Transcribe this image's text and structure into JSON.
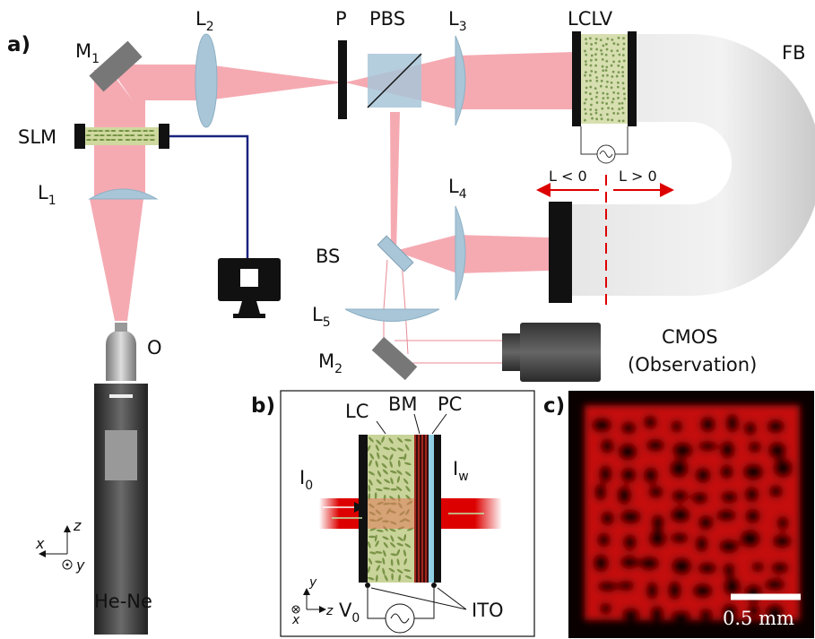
{
  "panel_a": {
    "label": "a)",
    "m1": {
      "main": "M",
      "sub": "1"
    },
    "l2": {
      "main": "L",
      "sub": "2"
    },
    "p": "P",
    "pbs": "PBS",
    "l3": {
      "main": "L",
      "sub": "3"
    },
    "lclv": "LCLV",
    "fb": "FB",
    "slm": "SLM",
    "l1": {
      "main": "L",
      "sub": "1"
    },
    "l4": {
      "main": "L",
      "sub": "4"
    },
    "l_neg": "L < 0",
    "l_pos": "L > 0",
    "bs": "BS",
    "l5": {
      "main": "L",
      "sub": "5"
    },
    "m2": {
      "main": "M",
      "sub": "2"
    },
    "cmos": "CMOS",
    "observation": "(Observation)",
    "o": "O",
    "laser": "He-Ne",
    "axis_x": "x",
    "axis_z": "z",
    "axis_y": "y"
  },
  "panel_b": {
    "label": "b)",
    "lc": "LC",
    "bm": "BM",
    "pc": "PC",
    "i0": {
      "main": "I",
      "sub": "0"
    },
    "iw": {
      "main": "I",
      "sub": "w"
    },
    "v0": {
      "main": "V",
      "sub": "0"
    },
    "ito": "ITO",
    "axis_y": "y",
    "axis_x": "x",
    "axis_z": "z"
  },
  "panel_c": {
    "label": "c)",
    "scale": "0.5 mm"
  }
}
